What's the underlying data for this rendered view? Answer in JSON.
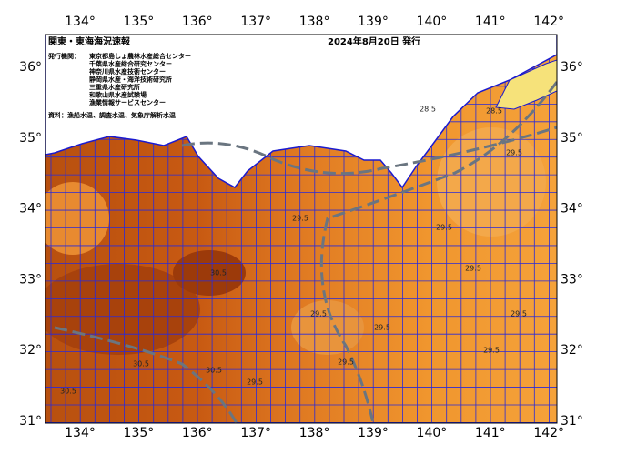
{
  "header": {
    "title": "関東・東海海況速報",
    "date": "2024年8月20日 発行"
  },
  "issuers": {
    "label": "発行機関：",
    "items": [
      "東京都島しょ農林水産総合センター",
      "千葉県水産総合研究センター",
      "神奈川県水産技術センター",
      "静岡県水産・海洋技術研究所",
      "三重県水産研究所",
      "和歌山県水産試験場",
      "漁業情報サービスセンター"
    ]
  },
  "source": "資料：漁船水温、調査水温、気象庁解析水温",
  "axes": {
    "lon_labels": [
      "134°",
      "135°",
      "136°",
      "137°",
      "138°",
      "139°",
      "140°",
      "141°",
      "142°"
    ],
    "lat_labels": [
      "36°",
      "35°",
      "34°",
      "33°",
      "32°",
      "31°"
    ]
  },
  "contour_labels": [
    "28.5",
    "29.5",
    "29.5",
    "29.5",
    "30.5",
    "29.5",
    "29.5",
    "29.5",
    "30.5",
    "30.5",
    "30.5",
    "29.5",
    "29.5",
    "29.5",
    "28.5",
    "29.5"
  ]
}
